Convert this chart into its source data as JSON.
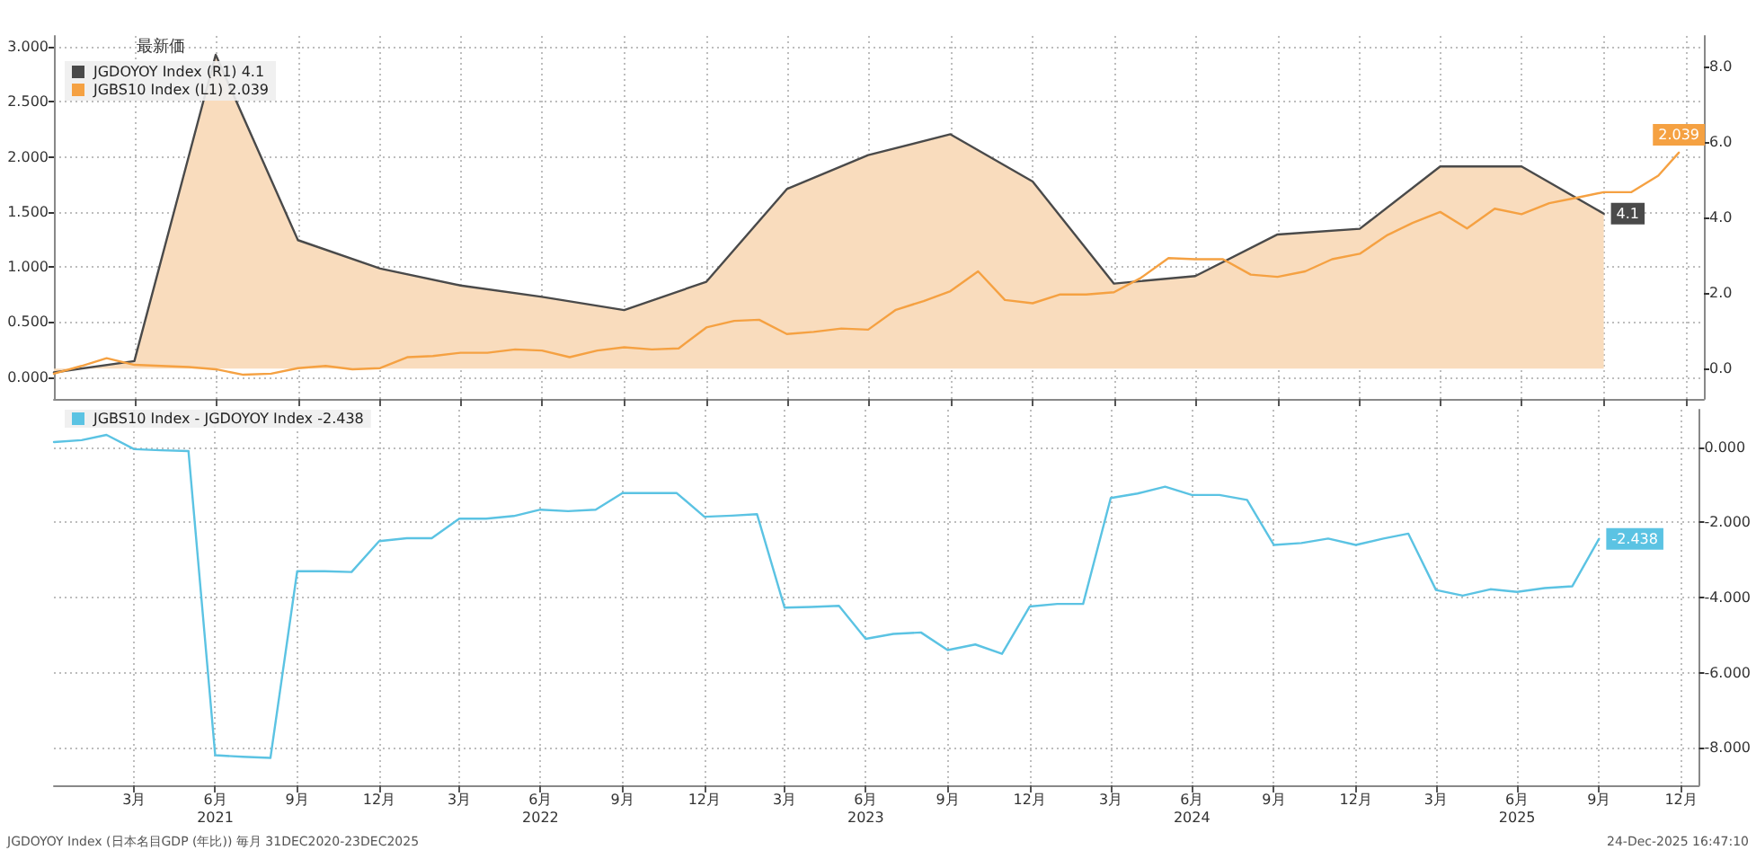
{
  "chart_data": [
    {
      "type": "line",
      "legend_title": "最新価",
      "legend": "top left",
      "grid": true,
      "marker": "none",
      "tick_labels": "y",
      "xlim": [
        "2020-12-31",
        "2026-01-20"
      ],
      "xticks": [
        {
          "value": "2021-03-31",
          "label": null
        },
        {
          "value": "2021-06-30",
          "label": null
        },
        {
          "value": "2021-09-30",
          "label": null
        },
        {
          "value": "2021-12-31",
          "label": null
        },
        {
          "value": "2022-03-31",
          "label": null
        },
        {
          "value": "2022-06-30",
          "label": null
        },
        {
          "value": "2022-09-30",
          "label": null
        },
        {
          "value": "2022-12-31",
          "label": null
        },
        {
          "value": "2023-03-31",
          "label": null
        },
        {
          "value": "2023-06-30",
          "label": null
        },
        {
          "value": "2023-09-30",
          "label": null
        },
        {
          "value": "2023-12-31",
          "label": null
        },
        {
          "value": "2024-03-31",
          "label": null
        },
        {
          "value": "2024-06-30",
          "label": null
        },
        {
          "value": "2024-09-30",
          "label": null
        },
        {
          "value": "2024-12-31",
          "label": null
        },
        {
          "value": "2025-03-31",
          "label": null
        },
        {
          "value": "2025-06-30",
          "label": null
        },
        {
          "value": "2025-09-30",
          "label": null
        },
        {
          "value": "2025-12-31",
          "label": null
        }
      ],
      "ylim": [
        -0.2,
        3.1
      ],
      "yticks": [
        {
          "value": 0,
          "label": "0.000"
        },
        {
          "value": 0.5,
          "label": "0.500"
        },
        {
          "value": 1,
          "label": "1.000"
        },
        {
          "value": 1.5,
          "label": "1.500"
        },
        {
          "value": 2,
          "label": "2.000"
        },
        {
          "value": 2.5,
          "label": "2.500"
        },
        {
          "value": 3,
          "label": "3.000"
        }
      ],
      "y2lim": [
        -0.8,
        8.8
      ],
      "y2ticks": [
        {
          "value": 0,
          "label": "0.0"
        },
        {
          "value": 2,
          "label": "2.0"
        },
        {
          "value": 4,
          "label": "4.0"
        },
        {
          "value": 6,
          "label": "6.0"
        },
        {
          "value": 8,
          "label": "8.0"
        }
      ],
      "series": [
        {
          "name": "JGDOYOY Index (R1) 4.1",
          "type": "area",
          "axis": "y2",
          "color": "#4a4a4a",
          "x": [
            "2020-12-31",
            "2021-03-31",
            "2021-06-30",
            "2021-09-30",
            "2021-12-31",
            "2022-03-31",
            "2022-06-30",
            "2022-09-30",
            "2022-12-31",
            "2023-03-31",
            "2023-06-30",
            "2023-09-30",
            "2023-12-31",
            "2024-03-31",
            "2024-06-30",
            "2024-09-30",
            "2024-12-31",
            "2025-03-31",
            "2025-06-30",
            "2025-09-30"
          ],
          "values": [
            -0.1,
            0.2,
            8.3,
            3.4,
            2.65,
            2.2,
            1.9,
            1.55,
            2.3,
            4.75,
            5.65,
            6.2,
            4.95,
            2.25,
            2.45,
            3.55,
            3.7,
            5.35,
            5.35,
            4.1
          ],
          "value_labels": [
            null,
            null,
            null,
            null,
            null,
            null,
            null,
            null,
            null,
            null,
            null,
            null,
            null,
            null,
            null,
            null,
            null,
            null,
            null,
            "4.1"
          ]
        },
        {
          "name": "JGBS10 Index (L1) 2.039",
          "axis": "y",
          "color": "#f5a142",
          "x": [
            "2020-12-31",
            "2021-01-31",
            "2021-02-28",
            "2021-03-31",
            "2021-04-30",
            "2021-05-31",
            "2021-06-30",
            "2021-07-31",
            "2021-08-31",
            "2021-09-30",
            "2021-10-31",
            "2021-11-30",
            "2021-12-31",
            "2022-01-31",
            "2022-02-28",
            "2022-03-31",
            "2022-04-30",
            "2022-05-31",
            "2022-06-30",
            "2022-07-31",
            "2022-08-31",
            "2022-09-30",
            "2022-10-31",
            "2022-11-30",
            "2022-12-31",
            "2023-01-31",
            "2023-02-28",
            "2023-03-31",
            "2023-04-30",
            "2023-05-31",
            "2023-06-30",
            "2023-07-31",
            "2023-08-31",
            "2023-09-30",
            "2023-10-31",
            "2023-11-30",
            "2023-12-31",
            "2024-01-31",
            "2024-02-29",
            "2024-03-31",
            "2024-04-30",
            "2024-05-31",
            "2024-06-30",
            "2024-07-31",
            "2024-08-31",
            "2024-09-30",
            "2024-10-31",
            "2024-11-30",
            "2024-12-31",
            "2025-01-31",
            "2025-02-28",
            "2025-03-31",
            "2025-04-30",
            "2025-05-31",
            "2025-06-30",
            "2025-07-31",
            "2025-08-31",
            "2025-09-30",
            "2025-10-31",
            "2025-11-30",
            "2025-12-23"
          ],
          "values": [
            0.03,
            0.1,
            0.17,
            0.11,
            0.1,
            0.09,
            0.07,
            0.02,
            0.03,
            0.08,
            0.1,
            0.07,
            0.08,
            0.18,
            0.19,
            0.22,
            0.22,
            0.25,
            0.24,
            0.18,
            0.24,
            0.27,
            0.25,
            0.26,
            0.45,
            0.51,
            0.52,
            0.39,
            0.41,
            0.44,
            0.43,
            0.61,
            0.69,
            0.78,
            0.96,
            0.7,
            0.67,
            0.75,
            0.75,
            0.77,
            0.9,
            1.08,
            1.07,
            1.07,
            0.93,
            0.91,
            0.96,
            1.07,
            1.12,
            1.29,
            1.4,
            1.5,
            1.35,
            1.53,
            1.48,
            1.58,
            1.63,
            1.68,
            1.68,
            1.83,
            2.039
          ],
          "value_labels": [
            null,
            null,
            null,
            null,
            null,
            null,
            null,
            null,
            null,
            null,
            null,
            null,
            null,
            null,
            null,
            null,
            null,
            null,
            null,
            null,
            null,
            null,
            null,
            null,
            null,
            null,
            null,
            null,
            null,
            null,
            null,
            null,
            null,
            null,
            null,
            null,
            null,
            null,
            null,
            null,
            null,
            null,
            null,
            null,
            null,
            null,
            null,
            null,
            null,
            null,
            null,
            null,
            null,
            null,
            null,
            null,
            null,
            null,
            null,
            null,
            "2.039"
          ]
        }
      ]
    },
    {
      "type": "line",
      "legend": "top left",
      "grid": true,
      "marker": "none",
      "xlim": [
        "2020-12-31",
        "2026-01-20"
      ],
      "xticks": [
        {
          "value": "2021-03-31",
          "label": "3月"
        },
        {
          "value": "2021-06-30",
          "label": "6月\n2021"
        },
        {
          "value": "2021-09-30",
          "label": "9月"
        },
        {
          "value": "2021-12-31",
          "label": "12月"
        },
        {
          "value": "2022-03-31",
          "label": "3月"
        },
        {
          "value": "2022-06-30",
          "label": "6月\n2022"
        },
        {
          "value": "2022-09-30",
          "label": "9月"
        },
        {
          "value": "2022-12-31",
          "label": "12月"
        },
        {
          "value": "2023-03-31",
          "label": "3月"
        },
        {
          "value": "2023-06-30",
          "label": "6月\n2023"
        },
        {
          "value": "2023-09-30",
          "label": "9月"
        },
        {
          "value": "2023-12-31",
          "label": "12月"
        },
        {
          "value": "2024-03-31",
          "label": "3月"
        },
        {
          "value": "2024-06-30",
          "label": "6月\n2024"
        },
        {
          "value": "2024-09-30",
          "label": "9月"
        },
        {
          "value": "2024-12-31",
          "label": "12月"
        },
        {
          "value": "2025-03-31",
          "label": "3月"
        },
        {
          "value": "2025-06-30",
          "label": "6月\n2025"
        },
        {
          "value": "2025-09-30",
          "label": "9月"
        },
        {
          "value": "2025-12-31",
          "label": "12月"
        }
      ],
      "y2lim": [
        -9,
        1
      ],
      "y2ticks": [
        {
          "value": 0,
          "label": "0.000"
        },
        {
          "value": -2,
          "label": "-2.000"
        },
        {
          "value": -4,
          "label": "-4.000"
        },
        {
          "value": -6,
          "label": "-6.000"
        },
        {
          "value": -8,
          "label": "-8.000"
        }
      ],
      "x": [
        "2020-12-31",
        "2021-01-31",
        "2021-02-28",
        "2021-03-31",
        "2021-04-30",
        "2021-05-31",
        "2021-06-30",
        "2021-07-31",
        "2021-08-31",
        "2021-09-30",
        "2021-10-31",
        "2021-11-30",
        "2021-12-31",
        "2022-01-31",
        "2022-02-28",
        "2022-03-31",
        "2022-04-30",
        "2022-05-31",
        "2022-06-30",
        "2022-07-31",
        "2022-08-31",
        "2022-09-30",
        "2022-10-31",
        "2022-11-30",
        "2022-12-31",
        "2023-01-31",
        "2023-02-28",
        "2023-03-31",
        "2023-04-30",
        "2023-05-31",
        "2023-06-30",
        "2023-07-31",
        "2023-08-31",
        "2023-09-30",
        "2023-10-31",
        "2023-11-30",
        "2023-12-31",
        "2024-01-31",
        "2024-02-29",
        "2024-03-31",
        "2024-04-30",
        "2024-05-31",
        "2024-06-30",
        "2024-07-31",
        "2024-08-31",
        "2024-09-30",
        "2024-10-31",
        "2024-11-30",
        "2024-12-31",
        "2025-01-31",
        "2025-02-28",
        "2025-03-31",
        "2025-04-30",
        "2025-05-31",
        "2025-06-30",
        "2025-07-31",
        "2025-08-31",
        "2025-09-30"
      ],
      "series": [
        {
          "name": "JGBS10 Index - JGDOYOY Index -2.438",
          "axis": "y2",
          "color": "#5bc3e3",
          "values": [
            0.14,
            0.19,
            0.33,
            -0.05,
            -0.08,
            -0.1,
            -8.2,
            -8.24,
            -8.27,
            -3.3,
            -3.3,
            -3.32,
            -2.5,
            -2.42,
            -2.42,
            -1.9,
            -1.9,
            -1.83,
            -1.66,
            -1.7,
            -1.66,
            -1.22,
            -1.22,
            -1.22,
            -1.85,
            -1.82,
            -1.78,
            -4.27,
            -4.25,
            -4.22,
            -5.1,
            -4.97,
            -4.93,
            -5.4,
            -5.25,
            -5.5,
            -4.24,
            -4.17,
            -4.17,
            -1.35,
            -1.23,
            -1.05,
            -1.27,
            -1.27,
            -1.4,
            -2.6,
            -2.55,
            -2.43,
            -2.6,
            -2.43,
            -2.3,
            -3.8,
            -3.95,
            -3.78,
            -3.85,
            -3.75,
            -3.7,
            -2.438
          ],
          "value_labels": [
            null,
            null,
            null,
            null,
            null,
            null,
            null,
            null,
            null,
            null,
            null,
            null,
            null,
            null,
            null,
            null,
            null,
            null,
            null,
            null,
            null,
            null,
            null,
            null,
            null,
            null,
            null,
            null,
            null,
            null,
            null,
            null,
            null,
            null,
            null,
            null,
            null,
            null,
            null,
            null,
            null,
            null,
            null,
            null,
            null,
            null,
            null,
            null,
            null,
            null,
            null,
            null,
            null,
            null,
            null,
            null,
            null,
            "-2.438"
          ]
        }
      ],
      "annotations": [
        "JGDOYOY Index (日本名目GDP (年比)) 毎月 31DEC2020-23DEC2025",
        "24-Dec-2025 16:47:10"
      ]
    }
  ]
}
